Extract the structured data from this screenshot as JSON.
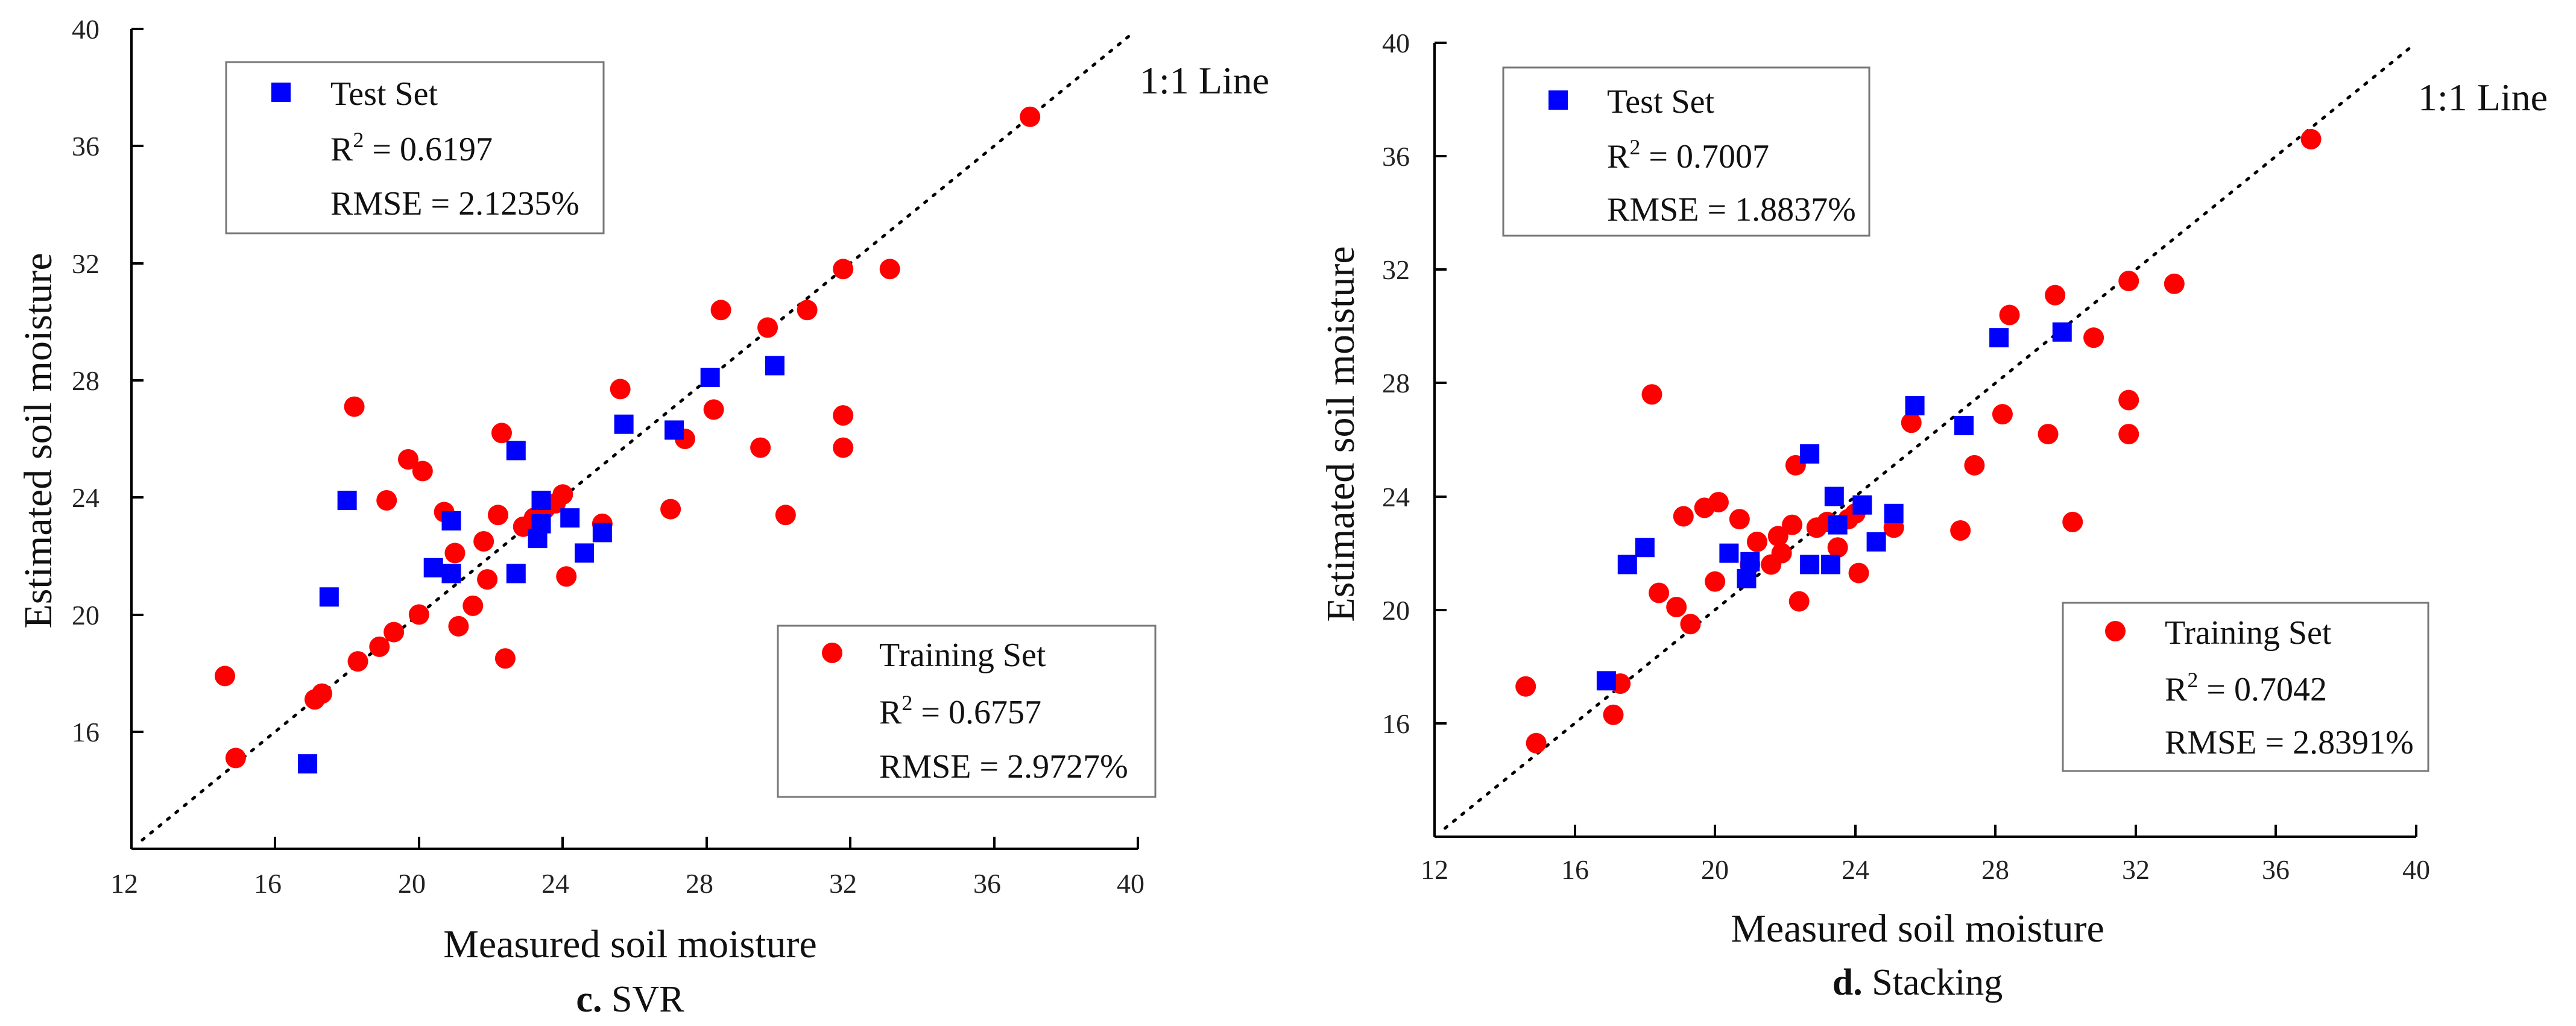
{
  "chart_data": [
    {
      "type": "scatter",
      "caption_letter": "c.",
      "caption_text": "SVR",
      "xlabel": "Measured soil moisture",
      "ylabel": "Estimated soil moisture",
      "xlim": [
        12,
        40
      ],
      "ylim": [
        12,
        40
      ],
      "xticks": [
        "12",
        "16",
        "20",
        "24",
        "28",
        "32",
        "36",
        "40"
      ],
      "yticks": [
        "16",
        "20",
        "24",
        "28",
        "32",
        "36",
        "40"
      ],
      "line_label": "1:1 Line",
      "test": {
        "name": "Test Set",
        "r2_prefix": "R",
        "r2_exp": "2",
        "r2_value": " = 0.6197",
        "rmse": "RMSE = 2.1235%",
        "color": "#0000ff",
        "points": [
          [
            16.9,
            14.9
          ],
          [
            17.5,
            20.6
          ],
          [
            18.0,
            23.9
          ],
          [
            20.9,
            23.2
          ],
          [
            20.4,
            21.6
          ],
          [
            20.9,
            21.4
          ],
          [
            22.7,
            25.6
          ],
          [
            22.7,
            21.4
          ],
          [
            23.3,
            22.6
          ],
          [
            23.4,
            23.9
          ],
          [
            23.4,
            23.1
          ],
          [
            24.2,
            23.3
          ],
          [
            24.6,
            22.1
          ],
          [
            25.1,
            22.8
          ],
          [
            25.7,
            26.5
          ],
          [
            27.1,
            26.3
          ],
          [
            28.1,
            28.1
          ],
          [
            29.9,
            28.5
          ]
        ]
      },
      "train": {
        "name": "Training Set",
        "r2_prefix": "R",
        "r2_exp": "2",
        "r2_value": " = 0.6757",
        "rmse": "RMSE = 2.9727%",
        "color": "#ff0000",
        "points": [
          [
            14.6,
            17.9
          ],
          [
            14.9,
            15.1
          ],
          [
            17.1,
            17.1
          ],
          [
            17.3,
            17.3
          ],
          [
            18.2,
            27.1
          ],
          [
            18.3,
            18.4
          ],
          [
            18.9,
            18.9
          ],
          [
            19.1,
            23.9
          ],
          [
            19.3,
            19.4
          ],
          [
            19.7,
            25.3
          ],
          [
            20.0,
            20.0
          ],
          [
            20.1,
            24.9
          ],
          [
            20.7,
            23.5
          ],
          [
            21.0,
            22.1
          ],
          [
            21.1,
            19.6
          ],
          [
            21.5,
            20.3
          ],
          [
            21.8,
            22.5
          ],
          [
            21.9,
            21.2
          ],
          [
            22.2,
            23.4
          ],
          [
            22.3,
            26.2
          ],
          [
            22.4,
            18.5
          ],
          [
            22.9,
            23.0
          ],
          [
            23.2,
            23.3
          ],
          [
            23.5,
            23.6
          ],
          [
            23.8,
            23.8
          ],
          [
            24.0,
            24.1
          ],
          [
            24.1,
            21.3
          ],
          [
            25.1,
            23.1
          ],
          [
            25.6,
            27.7
          ],
          [
            27.0,
            23.6
          ],
          [
            27.4,
            26.0
          ],
          [
            28.2,
            27.0
          ],
          [
            28.4,
            30.4
          ],
          [
            29.5,
            25.7
          ],
          [
            29.7,
            29.8
          ],
          [
            30.2,
            23.4
          ],
          [
            30.8,
            30.4
          ],
          [
            31.8,
            31.8
          ],
          [
            31.8,
            26.8
          ],
          [
            31.8,
            25.7
          ],
          [
            33.1,
            31.8
          ],
          [
            37.0,
            37.0
          ]
        ]
      }
    },
    {
      "type": "scatter",
      "caption_letter": "d.",
      "caption_text": "Stacking",
      "xlabel": "Measured soil moisture",
      "ylabel": "Estimated soil moisture",
      "xlim": [
        12,
        40
      ],
      "ylim": [
        12,
        40
      ],
      "xticks": [
        "12",
        "16",
        "20",
        "24",
        "28",
        "32",
        "36",
        "40"
      ],
      "yticks": [
        "16",
        "20",
        "24",
        "28",
        "32",
        "36",
        "40"
      ],
      "line_label": "1:1 Line",
      "test": {
        "name": "Test Set",
        "r2_prefix": "R",
        "r2_exp": "2",
        "r2_value": " = 0.7007",
        "rmse": "RMSE = 1.8837%",
        "color": "#0000ff",
        "points": [
          [
            16.9,
            17.5
          ],
          [
            17.5,
            21.6
          ],
          [
            18.0,
            22.2
          ],
          [
            20.4,
            22.0
          ],
          [
            20.9,
            21.1
          ],
          [
            21.0,
            21.7
          ],
          [
            22.7,
            25.5
          ],
          [
            22.7,
            21.6
          ],
          [
            23.3,
            21.6
          ],
          [
            23.4,
            24.0
          ],
          [
            23.5,
            23.0
          ],
          [
            24.2,
            23.7
          ],
          [
            24.6,
            22.4
          ],
          [
            25.1,
            23.4
          ],
          [
            25.7,
            27.2
          ],
          [
            27.1,
            26.5
          ],
          [
            28.1,
            29.6
          ],
          [
            29.9,
            29.8
          ]
        ]
      },
      "train": {
        "name": "Training Set",
        "r2_prefix": "R",
        "r2_exp": "2",
        "r2_value": " = 0.7042",
        "rmse": "RMSE = 2.8391%",
        "color": "#ff0000",
        "points": [
          [
            14.6,
            17.3
          ],
          [
            14.9,
            15.3
          ],
          [
            17.1,
            16.3
          ],
          [
            17.3,
            17.4
          ],
          [
            18.2,
            27.6
          ],
          [
            18.4,
            20.6
          ],
          [
            18.9,
            20.1
          ],
          [
            19.1,
            23.3
          ],
          [
            19.3,
            19.5
          ],
          [
            19.7,
            23.6
          ],
          [
            20.0,
            21.0
          ],
          [
            20.1,
            23.8
          ],
          [
            20.7,
            23.2
          ],
          [
            21.0,
            21.6
          ],
          [
            21.2,
            22.4
          ],
          [
            21.6,
            21.6
          ],
          [
            21.8,
            22.6
          ],
          [
            21.9,
            22.0
          ],
          [
            22.2,
            23.0
          ],
          [
            22.3,
            25.1
          ],
          [
            22.4,
            20.3
          ],
          [
            22.9,
            22.9
          ],
          [
            23.2,
            23.1
          ],
          [
            23.5,
            22.2
          ],
          [
            23.8,
            23.2
          ],
          [
            24.0,
            23.4
          ],
          [
            24.1,
            21.3
          ],
          [
            25.1,
            22.9
          ],
          [
            25.6,
            26.6
          ],
          [
            27.0,
            22.8
          ],
          [
            27.4,
            25.1
          ],
          [
            28.2,
            26.9
          ],
          [
            28.4,
            30.4
          ],
          [
            29.5,
            26.2
          ],
          [
            29.7,
            31.1
          ],
          [
            30.2,
            23.1
          ],
          [
            30.8,
            29.6
          ],
          [
            31.8,
            31.6
          ],
          [
            31.8,
            27.4
          ],
          [
            31.8,
            26.2
          ],
          [
            33.1,
            31.5
          ],
          [
            37.0,
            36.6
          ]
        ]
      }
    }
  ]
}
